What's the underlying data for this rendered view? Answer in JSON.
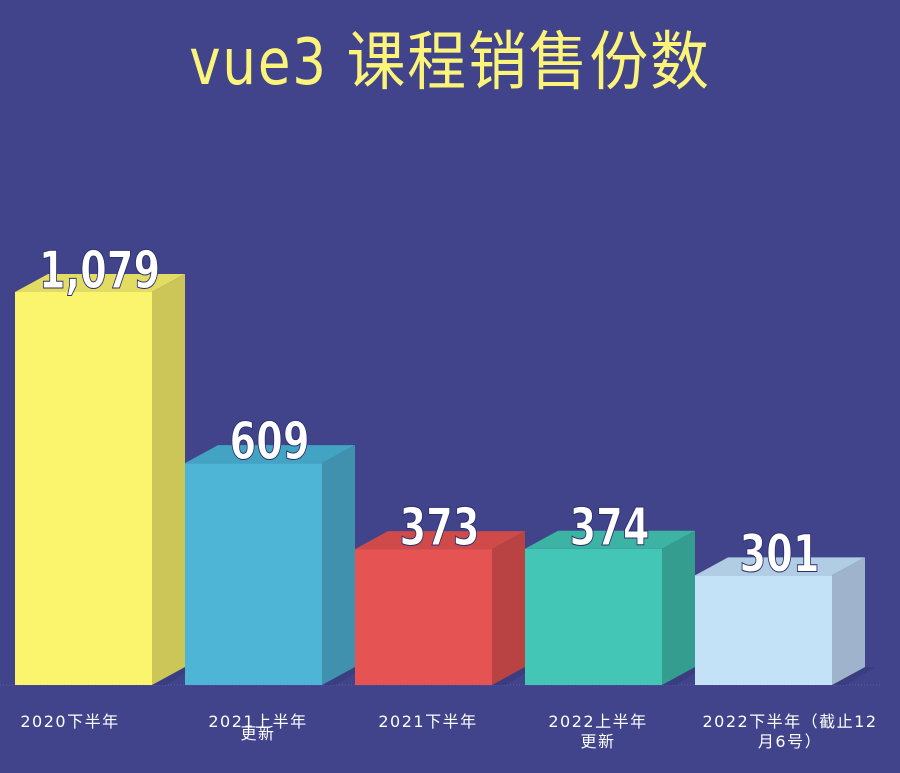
{
  "title": "vue3 课程销售份数",
  "colors": {
    "background": "#41448a",
    "title": "#fbf479",
    "value_label": "#ffffff"
  },
  "chart_data": {
    "type": "bar",
    "title": "vue3 课程销售份数",
    "xlabel": "",
    "ylabel": "",
    "categories": [
      "2020下半年",
      "2021上半年更新",
      "2021下半年",
      "2022上半年更新",
      "2022下半年（截止12月6号）"
    ],
    "values": [
      1079,
      609,
      373,
      374,
      301
    ],
    "value_labels": [
      "1,079",
      "609",
      "373",
      "374",
      "301"
    ],
    "bar_colors": {
      "front": [
        "#fbf56e",
        "#4fb5d6",
        "#e55452",
        "#44c6b6",
        "#c3e2f7"
      ],
      "top": [
        "#e3dc62",
        "#42a4c2",
        "#cf4a48",
        "#3db3a3",
        "#b0cde4"
      ],
      "side": [
        "#cbc657",
        "#3f91ae",
        "#b84342",
        "#349d90",
        "#9fb4cc"
      ]
    },
    "style": "3d-bar",
    "grid": false,
    "legend": false,
    "ylim": [
      0,
      1079
    ]
  },
  "x_labels": [
    {
      "lines": [
        "2020下半年"
      ]
    },
    {
      "lines": [
        "2021上半年",
        "更新"
      ]
    },
    {
      "lines": [
        "2021下半年"
      ]
    },
    {
      "lines": [
        "2022上半年",
        "更新"
      ]
    },
    {
      "lines": [
        "2022下半年（截止12",
        "月6号）"
      ]
    }
  ]
}
